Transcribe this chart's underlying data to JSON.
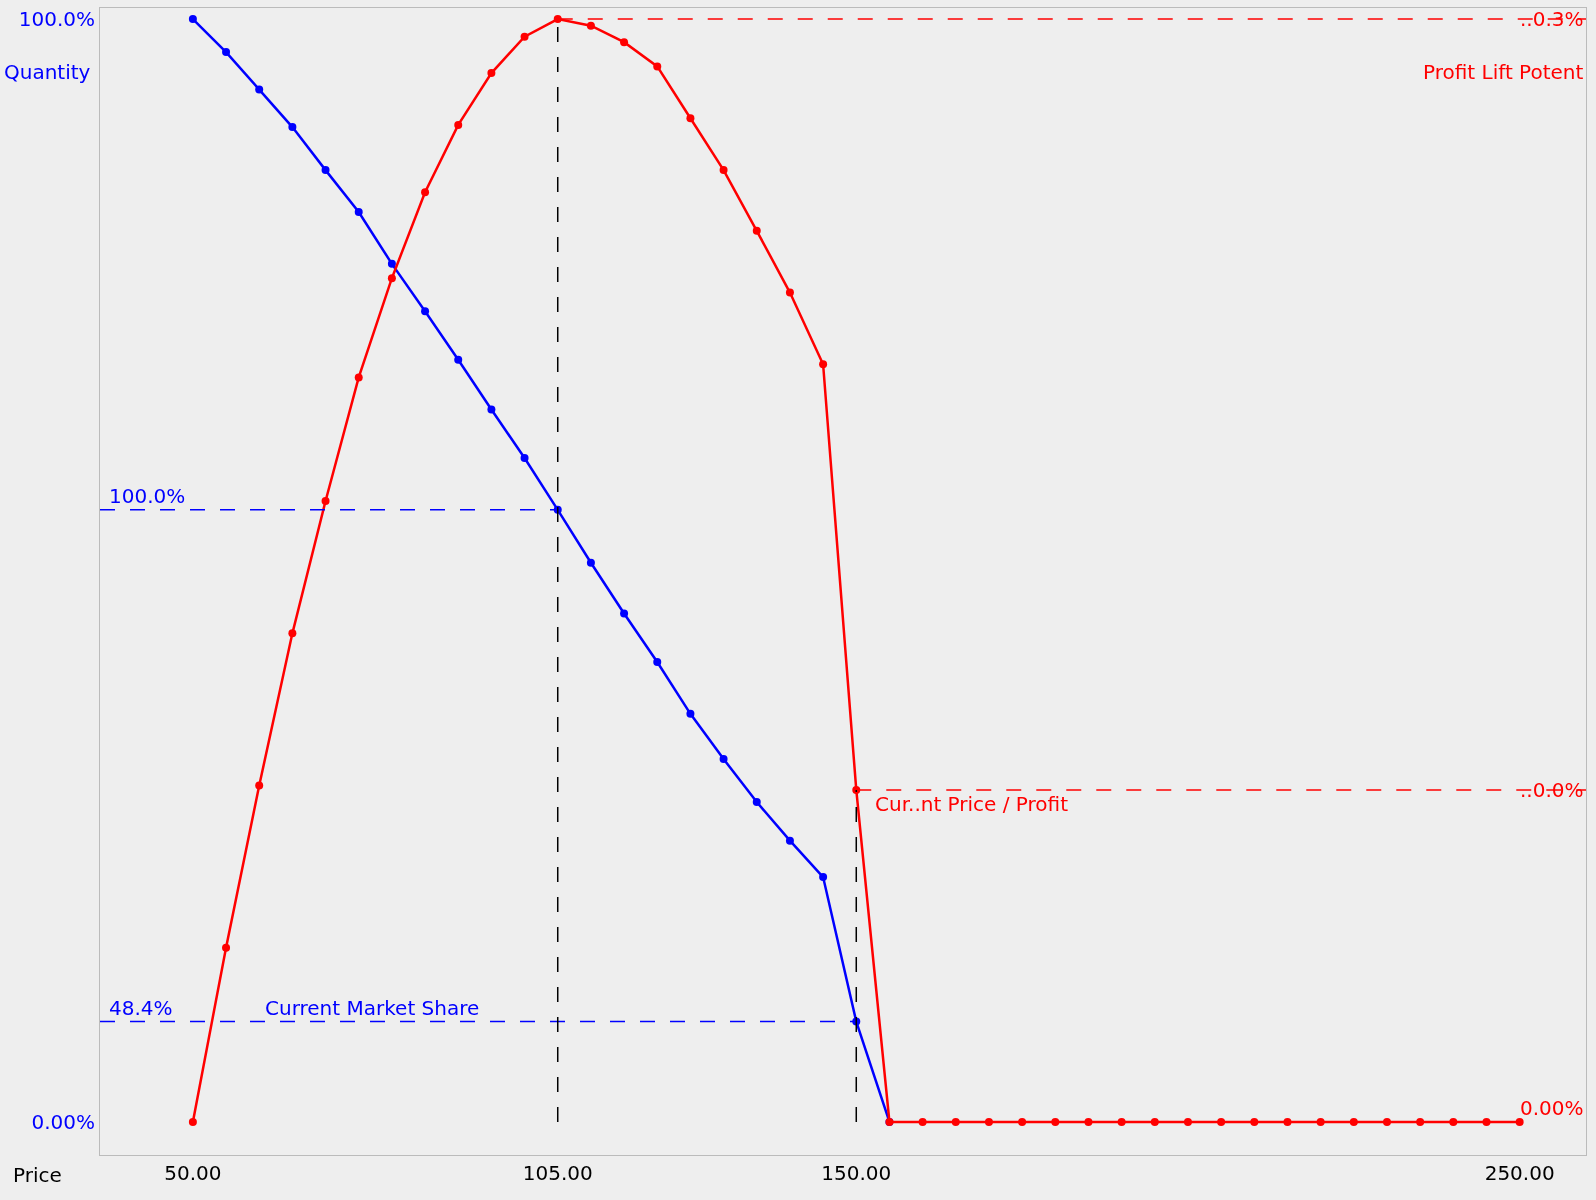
{
  "chart_data": {
    "type": "line",
    "xlabel": "Price",
    "series": [
      {
        "color": "#0000ff",
        "x": [
          50,
          55,
          60,
          65,
          70,
          75,
          80,
          85,
          90,
          95,
          100,
          105,
          110,
          115,
          120,
          125,
          130,
          135,
          140,
          145,
          150,
          155
        ],
        "values": [
          100,
          97.0,
          93.6,
          90.2,
          86.3,
          82.5,
          77.8,
          73.5,
          69.1,
          64.6,
          60.2,
          55.5,
          50.7,
          46.1,
          41.7,
          37.0,
          32.9,
          29.0,
          25.5,
          22.2,
          9.1,
          0
        ]
      },
      {
        "color": "#ff0000",
        "x": [
          50,
          55,
          60,
          65,
          70,
          75,
          80,
          85,
          90,
          95,
          100,
          105,
          110,
          115,
          120,
          125,
          130,
          135,
          140,
          145,
          150,
          155,
          160,
          165,
          170,
          175,
          180,
          185,
          190,
          195,
          200,
          205,
          210,
          215,
          220,
          225,
          230,
          235,
          240,
          245,
          250
        ],
        "values": [
          0,
          15.8,
          30.5,
          44.3,
          56.3,
          67.5,
          76.5,
          84.3,
          90.4,
          95.1,
          98.4,
          100,
          99.4,
          97.9,
          95.7,
          91.0,
          86.3,
          80.8,
          75.2,
          68.7,
          30.1,
          0,
          0,
          0,
          0,
          0,
          0,
          0,
          0,
          0,
          0,
          0,
          0,
          0,
          0,
          0,
          0,
          0,
          0,
          0,
          0
        ]
      }
    ],
    "xlim": [
      36,
      260
    ],
    "xticks": [
      {
        "value": 50,
        "label": "50.00"
      },
      {
        "value": 105,
        "label": "105.00"
      },
      {
        "value": 150,
        "label": "150.00"
      },
      {
        "value": 250,
        "label": "250.00"
      }
    ],
    "ylim": [
      -3,
      101
    ],
    "yticks": [
      {
        "value": 0,
        "label": "0.00%"
      },
      {
        "value": 100,
        "label": "100.0%"
      }
    ],
    "ref_lines": [
      {
        "axis": "y",
        "value": 55.5,
        "color": "#0000ff",
        "line_style": "dashed"
      },
      {
        "axis": "y",
        "value": 9.1,
        "color": "#0000ff",
        "line_style": "dashed"
      },
      {
        "axis": "y",
        "value": 100,
        "color": "#ff0000",
        "line_style": "dashed"
      },
      {
        "axis": "y",
        "value": 30.1,
        "color": "#ff0000",
        "line_style": "dashed"
      },
      {
        "axis": "x",
        "value": 105,
        "color": "#000000",
        "line_style": "dashed"
      },
      {
        "axis": "x",
        "value": 150,
        "color": "#000000",
        "line_style": "dashed"
      }
    ],
    "annotations": [
      "Current Market Share",
      "Cur..nt Price / Profit",
      "100.0%",
      "48.4%",
      "..0.3%",
      "..0.0%",
      "0.00%",
      "Quantity",
      "Profit Lift Potent"
    ],
    "marker": "circle",
    "line_style": "solid",
    "grid": false,
    "legend": false
  }
}
